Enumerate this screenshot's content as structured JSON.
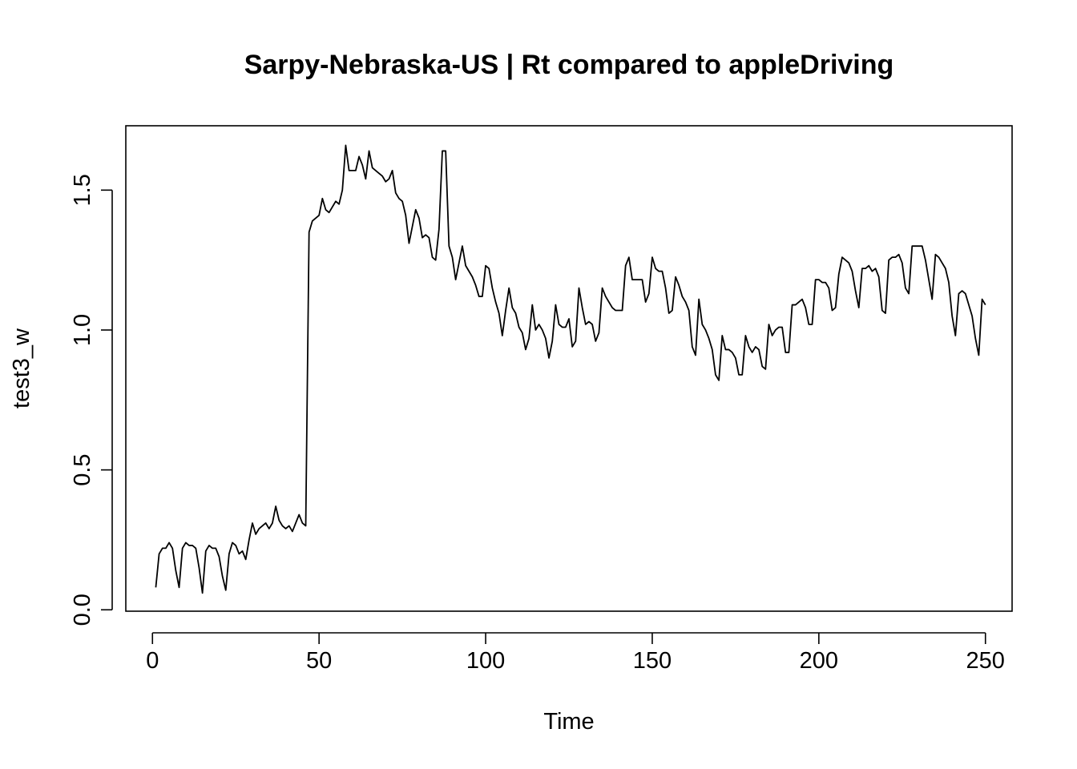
{
  "chart_data": {
    "type": "line",
    "title": "Sarpy-Nebraska-US | Rt compared to appleDriving",
    "xlabel": "Time",
    "ylabel": "test3_w",
    "xlim": [
      -8,
      258
    ],
    "ylim": [
      -0.005,
      1.73
    ],
    "x_ticks": [
      0,
      50,
      100,
      150,
      200,
      250
    ],
    "y_ticks": [
      0.0,
      0.5,
      1.0,
      1.5
    ],
    "x_tick_labels": [
      "0",
      "50",
      "100",
      "150",
      "200",
      "250"
    ],
    "y_tick_labels": [
      "0.0",
      "0.5",
      "1.0",
      "1.5"
    ],
    "grid": false,
    "legend": "none",
    "x_start": 1,
    "values": [
      0.08,
      0.2,
      0.22,
      0.22,
      0.24,
      0.22,
      0.14,
      0.08,
      0.22,
      0.24,
      0.23,
      0.23,
      0.22,
      0.15,
      0.06,
      0.21,
      0.23,
      0.22,
      0.22,
      0.19,
      0.12,
      0.07,
      0.2,
      0.24,
      0.23,
      0.2,
      0.21,
      0.18,
      0.25,
      0.31,
      0.27,
      0.29,
      0.3,
      0.31,
      0.29,
      0.31,
      0.37,
      0.32,
      0.3,
      0.29,
      0.3,
      0.28,
      0.31,
      0.34,
      0.31,
      0.3,
      1.35,
      1.39,
      1.4,
      1.41,
      1.47,
      1.43,
      1.42,
      1.44,
      1.46,
      1.45,
      1.5,
      1.66,
      1.57,
      1.57,
      1.57,
      1.62,
      1.59,
      1.54,
      1.64,
      1.58,
      1.57,
      1.56,
      1.55,
      1.53,
      1.54,
      1.57,
      1.49,
      1.47,
      1.46,
      1.41,
      1.31,
      1.37,
      1.43,
      1.4,
      1.33,
      1.34,
      1.33,
      1.26,
      1.25,
      1.36,
      1.64,
      1.64,
      1.3,
      1.26,
      1.18,
      1.24,
      1.3,
      1.23,
      1.21,
      1.19,
      1.16,
      1.12,
      1.12,
      1.23,
      1.22,
      1.15,
      1.1,
      1.06,
      0.98,
      1.07,
      1.15,
      1.08,
      1.06,
      1.01,
      0.99,
      0.93,
      0.97,
      1.09,
      1.0,
      1.02,
      1.0,
      0.97,
      0.9,
      0.96,
      1.09,
      1.02,
      1.01,
      1.01,
      1.04,
      0.94,
      0.96,
      1.15,
      1.08,
      1.02,
      1.03,
      1.02,
      0.96,
      0.99,
      1.15,
      1.12,
      1.1,
      1.08,
      1.07,
      1.07,
      1.07,
      1.23,
      1.26,
      1.18,
      1.18,
      1.18,
      1.18,
      1.1,
      1.13,
      1.26,
      1.22,
      1.21,
      1.21,
      1.15,
      1.06,
      1.07,
      1.19,
      1.16,
      1.12,
      1.1,
      1.07,
      0.94,
      0.91,
      1.11,
      1.02,
      1.0,
      0.97,
      0.93,
      0.84,
      0.82,
      0.98,
      0.93,
      0.93,
      0.92,
      0.9,
      0.84,
      0.84,
      0.98,
      0.94,
      0.92,
      0.94,
      0.93,
      0.87,
      0.86,
      1.02,
      0.98,
      1.0,
      1.01,
      1.01,
      0.92,
      0.92,
      1.09,
      1.09,
      1.1,
      1.11,
      1.08,
      1.02,
      1.02,
      1.18,
      1.18,
      1.17,
      1.17,
      1.15,
      1.07,
      1.08,
      1.2,
      1.26,
      1.25,
      1.24,
      1.21,
      1.14,
      1.08,
      1.22,
      1.22,
      1.23,
      1.21,
      1.22,
      1.19,
      1.07,
      1.06,
      1.25,
      1.26,
      1.26,
      1.27,
      1.24,
      1.15,
      1.13,
      1.3,
      1.3,
      1.3,
      1.3,
      1.25,
      1.18,
      1.11,
      1.27,
      1.26,
      1.24,
      1.22,
      1.17,
      1.05,
      0.98,
      1.13,
      1.14,
      1.13,
      1.09,
      1.05,
      0.97,
      0.91,
      1.11,
      1.09
    ]
  }
}
